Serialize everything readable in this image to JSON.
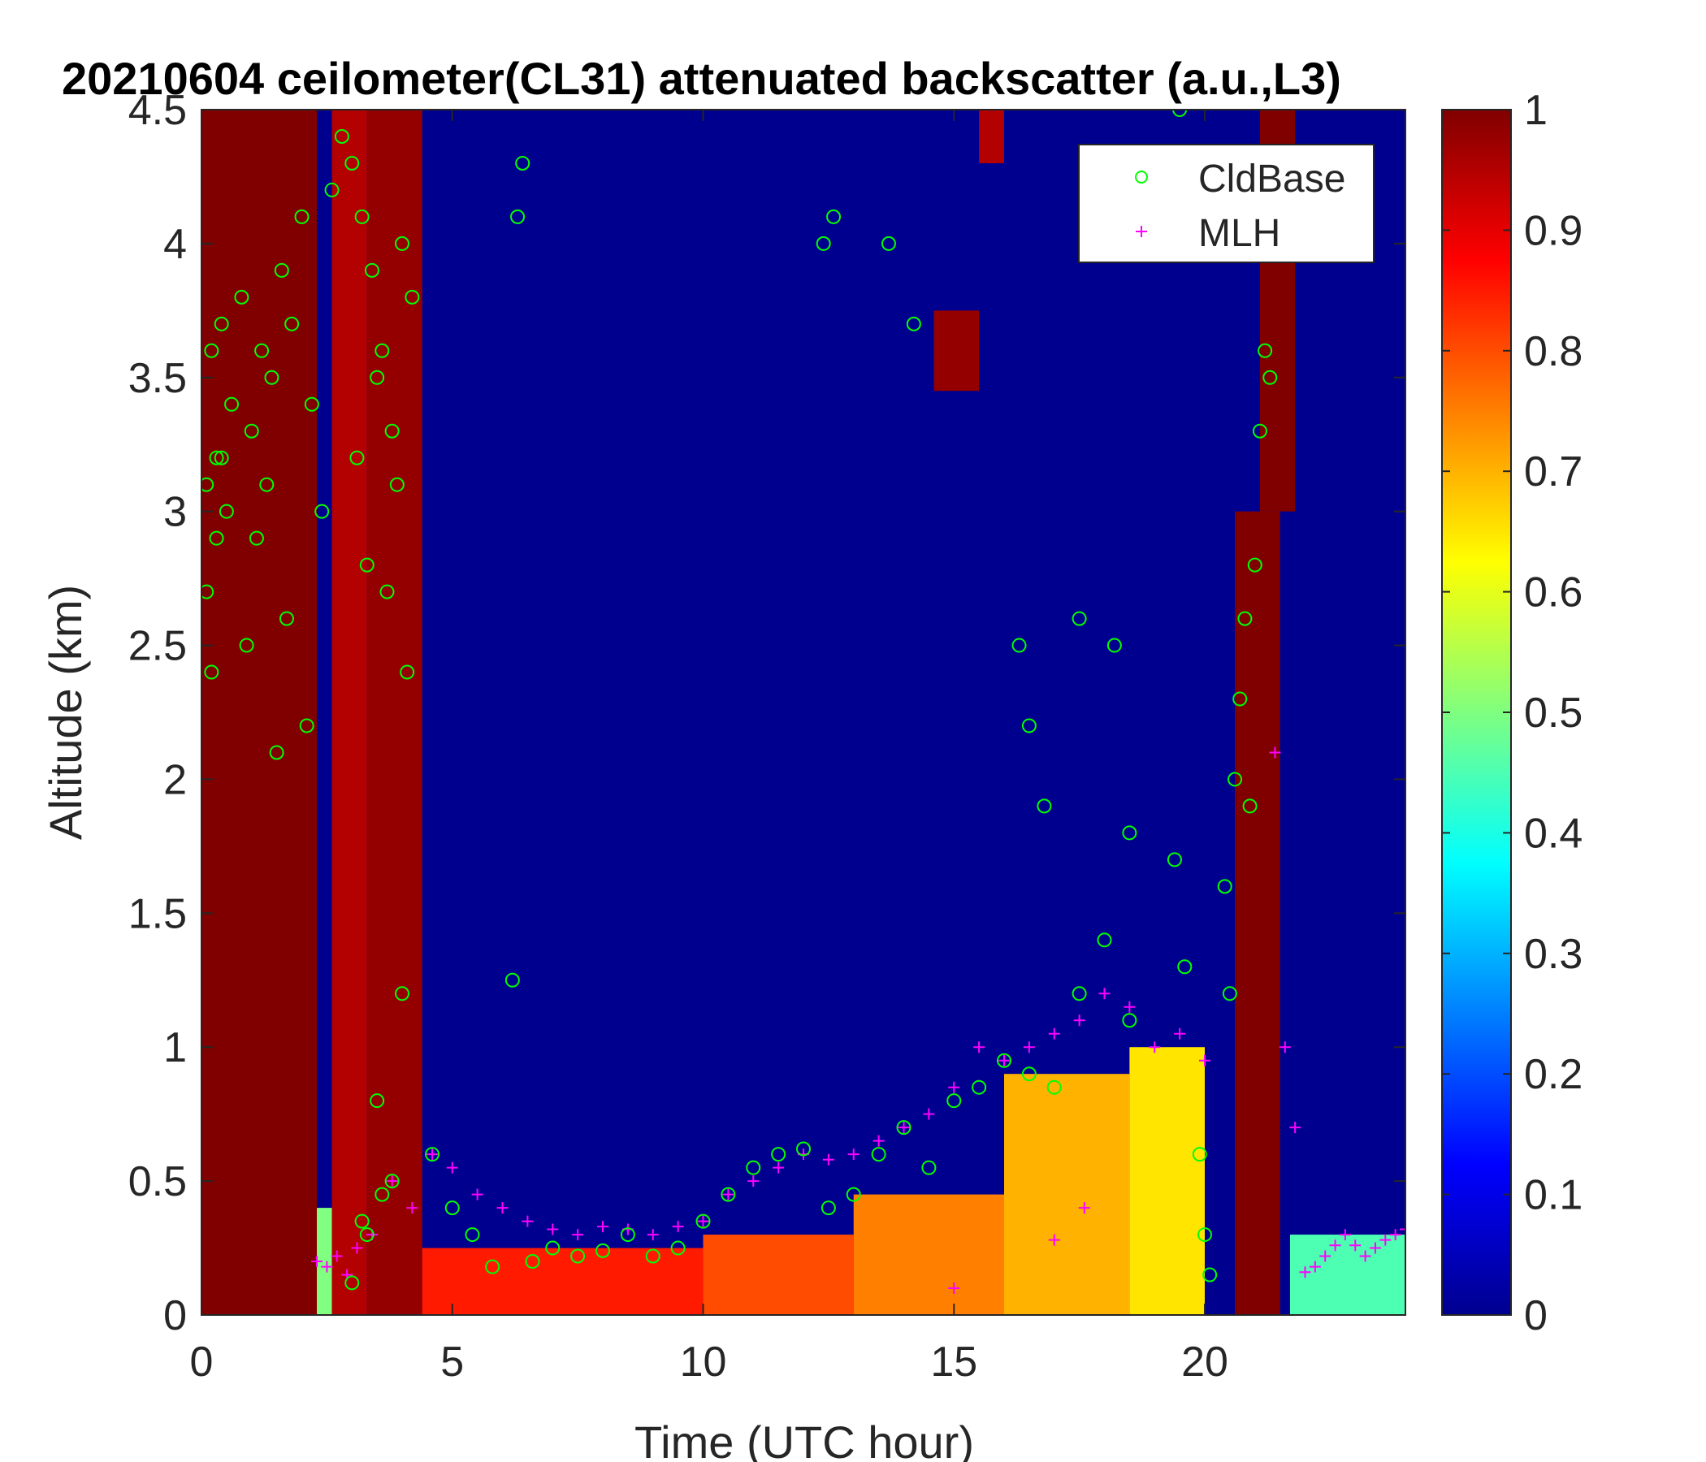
{
  "chart_data": {
    "type": "heatmap",
    "title": "20210604 ceilometer(CL31) attenuated backscatter (a.u.,L3)",
    "xlabel": "Time (UTC hour)",
    "ylabel": "Altitude (km)",
    "xlim": [
      0,
      24
    ],
    "ylim": [
      0,
      4.5
    ],
    "xticks": [
      "0",
      "5",
      "10",
      "15",
      "20"
    ],
    "yticks": [
      "0",
      "0.5",
      "1",
      "1.5",
      "2",
      "2.5",
      "3",
      "3.5",
      "4",
      "4.5"
    ],
    "colorbar": {
      "colormap": "jet",
      "range": [
        0,
        1
      ],
      "ticks": [
        "0",
        "0.1",
        "0.2",
        "0.3",
        "0.4",
        "0.5",
        "0.6",
        "0.7",
        "0.8",
        "0.9",
        "1"
      ]
    },
    "legend": {
      "placement": "top-right",
      "entries": [
        {
          "label": "CldBase",
          "marker": "circle",
          "color": "#00ff00"
        },
        {
          "label": "MLH",
          "marker": "plus",
          "color": "#ff00ff"
        }
      ]
    },
    "backscatter_regions": [
      {
        "t0": 0.0,
        "t1": 2.3,
        "z0": 0.0,
        "z1": 4.5,
        "value": 1.0
      },
      {
        "t0": 2.3,
        "t1": 2.6,
        "z0": 0.0,
        "z1": 0.4,
        "value": 0.5
      },
      {
        "t0": 2.6,
        "t1": 3.3,
        "z0": 0.0,
        "z1": 4.5,
        "value": 0.95
      },
      {
        "t0": 3.3,
        "t1": 4.4,
        "z0": 0.0,
        "z1": 4.5,
        "value": 0.98
      },
      {
        "t0": 4.4,
        "t1": 10.0,
        "z0": 0.0,
        "z1": 0.25,
        "value": 0.85
      },
      {
        "t0": 10.0,
        "t1": 13.0,
        "z0": 0.0,
        "z1": 0.3,
        "value": 0.8
      },
      {
        "t0": 13.0,
        "t1": 16.0,
        "z0": 0.0,
        "z1": 0.45,
        "value": 0.75
      },
      {
        "t0": 16.0,
        "t1": 18.5,
        "z0": 0.0,
        "z1": 0.9,
        "value": 0.7
      },
      {
        "t0": 18.5,
        "t1": 20.0,
        "z0": 0.0,
        "z1": 1.0,
        "value": 0.65
      },
      {
        "t0": 14.6,
        "t1": 15.5,
        "z0": 3.45,
        "z1": 3.75,
        "value": 0.98
      },
      {
        "t0": 15.5,
        "t1": 16.0,
        "z0": 4.3,
        "z1": 4.5,
        "value": 0.95
      },
      {
        "t0": 20.6,
        "t1": 21.5,
        "z0": 0.0,
        "z1": 3.0,
        "value": 1.0
      },
      {
        "t0": 21.1,
        "t1": 21.8,
        "z0": 3.0,
        "z1": 4.5,
        "value": 1.0
      },
      {
        "t0": 21.7,
        "t1": 24.0,
        "z0": 0.0,
        "z1": 0.3,
        "value": 0.45
      }
    ],
    "series": [
      {
        "name": "CldBase",
        "x": [
          0.1,
          0.2,
          0.3,
          0.4,
          0.6,
          0.8,
          1.0,
          1.2,
          1.4,
          1.6,
          1.8,
          2.0,
          2.2,
          0.1,
          0.3,
          0.5,
          0.9,
          1.3,
          1.7,
          2.1,
          0.2,
          0.4,
          1.1,
          1.5,
          2.4,
          2.6,
          2.8,
          3.0,
          3.2,
          3.4,
          3.6,
          3.8,
          4.0,
          4.2,
          3.1,
          3.3,
          3.5,
          3.7,
          3.9,
          4.1,
          3.2,
          3.6,
          4.0,
          3.0,
          3.3,
          3.5,
          3.8,
          4.6,
          5.0,
          5.4,
          5.8,
          6.2,
          6.4,
          6.3,
          6.6,
          7.0,
          7.5,
          8.0,
          8.5,
          9.0,
          9.5,
          10.0,
          10.5,
          11.0,
          11.5,
          12.0,
          12.5,
          13.0,
          13.5,
          14.0,
          14.5,
          15.0,
          15.5,
          16.0,
          16.5,
          17.0,
          17.5,
          18.0,
          18.5,
          12.4,
          12.6,
          13.7,
          14.2,
          16.3,
          16.5,
          16.8,
          17.5,
          18.2,
          18.5,
          19.4,
          19.6,
          19.5,
          19.9,
          20.0,
          20.1,
          20.5,
          20.6,
          20.7,
          20.8,
          21.0,
          21.1,
          21.2,
          20.4,
          20.9,
          21.3
        ],
        "y": [
          3.1,
          3.6,
          3.2,
          3.7,
          3.4,
          3.8,
          3.3,
          3.6,
          3.5,
          3.9,
          3.7,
          4.1,
          3.4,
          2.7,
          2.9,
          3.0,
          2.5,
          3.1,
          2.6,
          2.2,
          2.4,
          3.2,
          2.9,
          2.1,
          3.0,
          4.2,
          4.4,
          4.3,
          4.1,
          3.9,
          3.6,
          3.3,
          4.0,
          3.8,
          3.2,
          2.8,
          3.5,
          2.7,
          3.1,
          2.4,
          0.35,
          0.45,
          1.2,
          0.12,
          0.3,
          0.8,
          0.5,
          0.6,
          0.4,
          0.3,
          0.18,
          1.25,
          4.3,
          4.1,
          0.2,
          0.25,
          0.22,
          0.24,
          0.3,
          0.22,
          0.25,
          0.35,
          0.45,
          0.55,
          0.6,
          0.62,
          0.4,
          0.45,
          0.6,
          0.7,
          0.55,
          0.8,
          0.85,
          0.95,
          0.9,
          0.85,
          1.2,
          1.4,
          1.1,
          4.0,
          4.1,
          4.0,
          3.7,
          2.5,
          2.2,
          1.9,
          2.6,
          2.5,
          1.8,
          1.7,
          1.3,
          4.5,
          0.6,
          0.3,
          0.15,
          1.2,
          2.0,
          2.3,
          2.6,
          2.8,
          3.3,
          3.6,
          1.6,
          1.9,
          3.5
        ]
      },
      {
        "name": "MLH",
        "x": [
          2.3,
          2.5,
          2.7,
          2.9,
          3.1,
          3.4,
          3.8,
          4.2,
          4.6,
          5.0,
          5.5,
          6.0,
          6.5,
          7.0,
          7.5,
          8.0,
          8.5,
          9.0,
          9.5,
          10.0,
          10.5,
          11.0,
          11.5,
          12.0,
          12.5,
          13.0,
          13.5,
          14.0,
          14.5,
          15.0,
          15.5,
          16.0,
          16.5,
          17.0,
          17.5,
          18.0,
          18.5,
          19.0,
          19.5,
          20.0,
          21.4,
          21.6,
          21.8,
          22.0,
          22.2,
          22.4,
          22.6,
          22.8,
          23.0,
          23.2,
          23.4,
          23.6,
          23.8,
          24.0,
          17.0,
          17.6,
          15.0
        ],
        "y": [
          0.2,
          0.18,
          0.22,
          0.15,
          0.25,
          0.3,
          0.5,
          0.4,
          0.6,
          0.55,
          0.45,
          0.4,
          0.35,
          0.32,
          0.3,
          0.33,
          0.32,
          0.3,
          0.33,
          0.35,
          0.45,
          0.5,
          0.55,
          0.6,
          0.58,
          0.6,
          0.65,
          0.7,
          0.75,
          0.85,
          1.0,
          0.95,
          1.0,
          1.05,
          1.1,
          1.2,
          1.15,
          1.0,
          1.05,
          0.95,
          2.1,
          1.0,
          0.7,
          0.16,
          0.18,
          0.22,
          0.26,
          0.3,
          0.26,
          0.22,
          0.25,
          0.28,
          0.3,
          0.32,
          0.28,
          0.4,
          0.1
        ]
      }
    ]
  }
}
